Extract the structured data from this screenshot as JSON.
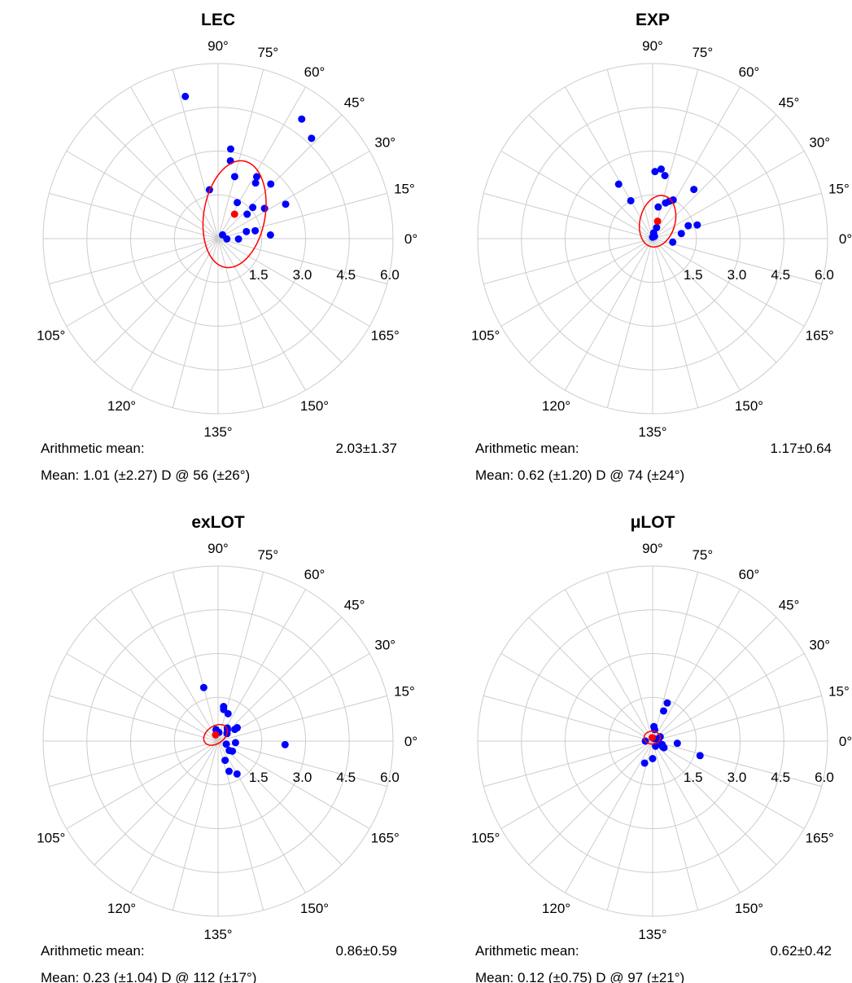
{
  "chart_data": [
    {
      "type": "scatter",
      "title": "LEC",
      "angle_labels": [
        "0°",
        "15°",
        "30°",
        "45°",
        "60°",
        "75°",
        "90°",
        "105°",
        "120°",
        "135°",
        "150°",
        "165°"
      ],
      "radial_ticks": [
        "1.5",
        "3.0",
        "4.5",
        "6.0"
      ],
      "rlim": [
        0,
        6
      ],
      "grid": true,
      "point_color": "#0000ff",
      "mean_color": "#ff0000",
      "points": [
        {
          "r": 4.7,
          "deg": 47
        },
        {
          "r": 5.0,
          "deg": 55
        },
        {
          "r": 2.6,
          "deg": 46
        },
        {
          "r": 2.6,
          "deg": 27
        },
        {
          "r": 2.5,
          "deg": 58
        },
        {
          "r": 2.3,
          "deg": 56
        },
        {
          "r": 1.6,
          "deg": 42
        },
        {
          "r": 1.9,
          "deg": 33
        },
        {
          "r": 1.3,
          "deg": 40
        },
        {
          "r": 1.3,
          "deg": 12
        },
        {
          "r": 1.0,
          "deg": 14
        },
        {
          "r": 1.8,
          "deg": 4
        },
        {
          "r": 0.7,
          "deg": -1
        },
        {
          "r": 0.2,
          "deg": 40
        },
        {
          "r": 0.3,
          "deg": -2
        },
        {
          "r": 1.4,
          "deg": 62
        },
        {
          "r": 2.2,
          "deg": 75
        },
        {
          "r": 2.7,
          "deg": 81
        },
        {
          "r": 3.1,
          "deg": 82
        },
        {
          "r": 1.7,
          "deg": 100
        },
        {
          "r": 5.0,
          "deg": 103
        }
      ],
      "mean_point": {
        "r": 1.01,
        "deg": 56
      },
      "mean_ellipse": {
        "rx": 1.05,
        "ry": 1.85,
        "rotate_deg": 10
      },
      "stats": {
        "arithmetic_label": "Arithmetic mean:",
        "arithmetic_value": "2.03±1.37",
        "mean_text": "Mean: 1.01 (±2.27) D @ 56 (±26°)"
      }
    },
    {
      "type": "scatter",
      "title": "EXP",
      "angle_labels": [
        "0°",
        "15°",
        "30°",
        "45°",
        "60°",
        "75°",
        "90°",
        "105°",
        "120°",
        "135°",
        "150°",
        "165°"
      ],
      "radial_ticks": [
        "1.5",
        "3.0",
        "4.5",
        "6.0"
      ],
      "rlim": [
        0,
        6
      ],
      "grid": true,
      "point_color": "#0000ff",
      "mean_color": "#ff0000",
      "points": [
        {
          "r": 2.2,
          "deg": 50
        },
        {
          "r": 1.3,
          "deg": 20
        },
        {
          "r": 1.6,
          "deg": 17
        },
        {
          "r": 1.0,
          "deg": 10
        },
        {
          "r": 0.7,
          "deg": -10
        },
        {
          "r": 1.5,
          "deg": 62
        },
        {
          "r": 1.4,
          "deg": 66
        },
        {
          "r": 1.3,
          "deg": 70
        },
        {
          "r": 1.1,
          "deg": 80
        },
        {
          "r": 0.4,
          "deg": 70
        },
        {
          "r": 0.2,
          "deg": 80
        },
        {
          "r": 0.1,
          "deg": 50
        },
        {
          "r": 2.2,
          "deg": 79
        },
        {
          "r": 2.4,
          "deg": 83
        },
        {
          "r": 2.3,
          "deg": 88
        },
        {
          "r": 1.5,
          "deg": 120
        },
        {
          "r": 2.2,
          "deg": 122
        },
        {
          "r": 0.05,
          "deg": 90
        }
      ],
      "mean_point": {
        "r": 0.62,
        "deg": 74
      },
      "mean_ellipse": {
        "rx": 0.6,
        "ry": 0.9,
        "rotate_deg": 15
      },
      "stats": {
        "arithmetic_label": "Arithmetic mean:",
        "arithmetic_value": "1.17±0.64",
        "mean_text": "Mean: 0.62 (±1.20) D @ 74 (±24°)"
      }
    },
    {
      "type": "scatter",
      "title": "exLOT",
      "angle_labels": [
        "0°",
        "15°",
        "30°",
        "45°",
        "60°",
        "75°",
        "90°",
        "105°",
        "120°",
        "135°",
        "150°",
        "165°"
      ],
      "radial_ticks": [
        "1.5",
        "3.0",
        "4.5",
        "6.0"
      ],
      "rlim": [
        0,
        6
      ],
      "grid": true,
      "point_color": "#0000ff",
      "mean_color": "#ff0000",
      "points": [
        {
          "r": 0.7,
          "deg": 35
        },
        {
          "r": 0.5,
          "deg": 50
        },
        {
          "r": 0.55,
          "deg": 55
        },
        {
          "r": 0.8,
          "deg": 35
        },
        {
          "r": 1.1,
          "deg": 80
        },
        {
          "r": 1.0,
          "deg": 70
        },
        {
          "r": 1.2,
          "deg": 81
        },
        {
          "r": 0.4,
          "deg": 100
        },
        {
          "r": 0.6,
          "deg": -5
        },
        {
          "r": 0.3,
          "deg": -20
        },
        {
          "r": 0.5,
          "deg": -40
        },
        {
          "r": 0.6,
          "deg": -35
        },
        {
          "r": 2.3,
          "deg": -3
        },
        {
          "r": 0.7,
          "deg": -70
        },
        {
          "r": 1.1,
          "deg": -70
        },
        {
          "r": 1.3,
          "deg": -60
        },
        {
          "r": 1.9,
          "deg": 105
        },
        {
          "r": 0.3,
          "deg": 85
        },
        {
          "r": 0.4,
          "deg": 40
        }
      ],
      "mean_point": {
        "r": 0.23,
        "deg": 112
      },
      "mean_ellipse": {
        "rx": 0.45,
        "ry": 0.3,
        "rotate_deg": -35
      },
      "stats": {
        "arithmetic_label": "Arithmetic mean:",
        "arithmetic_value": "0.86±0.59",
        "mean_text": "Mean: 0.23 (±1.04) D @ 112 (±17°)"
      }
    },
    {
      "type": "scatter",
      "title": "μLOT",
      "angle_labels": [
        "0°",
        "15°",
        "30°",
        "45°",
        "60°",
        "75°",
        "90°",
        "105°",
        "120°",
        "135°",
        "150°",
        "165°"
      ],
      "radial_ticks": [
        "1.5",
        "3.0",
        "4.5",
        "6.0"
      ],
      "rlim": [
        0,
        6
      ],
      "grid": true,
      "point_color": "#0000ff",
      "mean_color": "#ff0000",
      "points": [
        {
          "r": 1.4,
          "deg": 69
        },
        {
          "r": 1.1,
          "deg": 70
        },
        {
          "r": 0.85,
          "deg": -5
        },
        {
          "r": 0.5,
          "deg": 85
        },
        {
          "r": 0.4,
          "deg": 80
        },
        {
          "r": 1.7,
          "deg": -17
        },
        {
          "r": 0.3,
          "deg": 30
        },
        {
          "r": 0.35,
          "deg": -20
        },
        {
          "r": 0.4,
          "deg": -30
        },
        {
          "r": 0.25,
          "deg": 180
        },
        {
          "r": 0.1,
          "deg": 60
        },
        {
          "r": 0.2,
          "deg": -60
        },
        {
          "r": 0.8,
          "deg": -110
        },
        {
          "r": 0.6,
          "deg": -90
        },
        {
          "r": 0.45,
          "deg": -30
        },
        {
          "r": 0.2,
          "deg": 10
        }
      ],
      "mean_point": {
        "r": 0.12,
        "deg": 97
      },
      "mean_ellipse": {
        "rx": 0.28,
        "ry": 0.22,
        "rotate_deg": 0
      },
      "stats": {
        "arithmetic_label": "Arithmetic mean:",
        "arithmetic_value": "0.62±0.42",
        "mean_text": "Mean: 0.12 (±0.75) D @ 97 (±21°)"
      }
    }
  ]
}
